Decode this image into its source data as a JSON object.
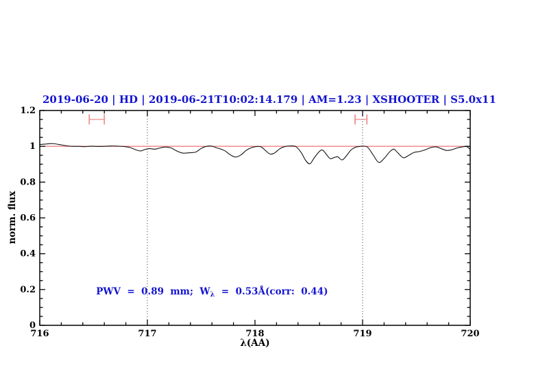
{
  "figure": {
    "background": "#ffffff",
    "title_color": "#1414d2"
  },
  "chart_data": {
    "type": "line",
    "title": "2019-06-20 | HD | 2019-06-21T10:02:14.179 | AM=1.23 | XSHOOTER | S5.0x11",
    "title_segments": [
      "2019-06-20",
      "HD",
      "2019-06-21T10:02:14.179",
      "AM=1.23",
      "XSHOOTER",
      "S5.0x11"
    ],
    "xlabel": "λ(AA)",
    "ylabel": "norm. flux",
    "xlim": [
      716,
      720
    ],
    "ylim": [
      0,
      1.2
    ],
    "x_ticks": [
      {
        "v": 716,
        "label": "716"
      },
      {
        "v": 717,
        "label": "717"
      },
      {
        "v": 718,
        "label": "718"
      },
      {
        "v": 719,
        "label": "719"
      },
      {
        "v": 720,
        "label": "720"
      }
    ],
    "y_ticks": [
      {
        "v": 0,
        "label": "0"
      },
      {
        "v": 0.2,
        "label": "0.2"
      },
      {
        "v": 0.4,
        "label": "0.4"
      },
      {
        "v": 0.6,
        "label": "0.6"
      },
      {
        "v": 0.8,
        "label": "0.8"
      },
      {
        "v": 1,
        "label": "1"
      },
      {
        "v": 1.2,
        "label": "1.2"
      }
    ],
    "x_minor_step": 0.2,
    "y_minor_step": 0.05,
    "grid": false,
    "dotted_vlines": [
      717,
      719
    ],
    "dotted_vline_color": "#333333",
    "continuum_line": {
      "flux": 1.0,
      "color": "#f08080"
    },
    "marker_color": "#f09090",
    "telluric_markers": [
      {
        "x_min": 716.46,
        "x_max": 716.6,
        "flux": 1.15,
        "cap_half_height": 0.028
      },
      {
        "x_min": 718.93,
        "x_max": 719.04,
        "flux": 1.15,
        "cap_half_height": 0.028
      }
    ],
    "annotation": {
      "text_pre": "PWV  =  0.89  mm;  W",
      "subscript": "λ",
      "text_post": "  =  0.53Å(corr:  0.44)",
      "x": 716.53,
      "flux": 0.2,
      "color": "#1414d2"
    },
    "series": [
      {
        "name": "observed spectrum",
        "color": "#141414",
        "points": [
          [
            716.0,
            1.01
          ],
          [
            716.06,
            1.013
          ],
          [
            716.12,
            1.015
          ],
          [
            716.18,
            1.01
          ],
          [
            716.24,
            1.004
          ],
          [
            716.3,
            1.0
          ],
          [
            716.36,
            1.0
          ],
          [
            716.42,
            0.998
          ],
          [
            716.48,
            1.001
          ],
          [
            716.54,
            0.999
          ],
          [
            716.6,
            1.0
          ],
          [
            716.66,
            1.002
          ],
          [
            716.72,
            1.001
          ],
          [
            716.78,
            0.999
          ],
          [
            716.84,
            0.993
          ],
          [
            716.9,
            0.979
          ],
          [
            716.94,
            0.974
          ],
          [
            716.98,
            0.983
          ],
          [
            717.02,
            0.987
          ],
          [
            717.07,
            0.984
          ],
          [
            717.12,
            0.991
          ],
          [
            717.17,
            0.996
          ],
          [
            717.22,
            0.991
          ],
          [
            717.27,
            0.975
          ],
          [
            717.33,
            0.962
          ],
          [
            717.39,
            0.964
          ],
          [
            717.45,
            0.968
          ],
          [
            717.5,
            0.988
          ],
          [
            717.55,
            1.0
          ],
          [
            717.6,
            1.001
          ],
          [
            717.64,
            0.992
          ],
          [
            717.68,
            0.985
          ],
          [
            717.72,
            0.975
          ],
          [
            717.77,
            0.953
          ],
          [
            717.82,
            0.94
          ],
          [
            717.87,
            0.952
          ],
          [
            717.92,
            0.978
          ],
          [
            717.97,
            0.993
          ],
          [
            718.02,
            0.999
          ],
          [
            718.06,
            0.996
          ],
          [
            718.1,
            0.975
          ],
          [
            718.14,
            0.957
          ],
          [
            718.18,
            0.962
          ],
          [
            718.23,
            0.986
          ],
          [
            718.28,
            0.999
          ],
          [
            718.33,
            1.002
          ],
          [
            718.38,
            0.998
          ],
          [
            718.43,
            0.965
          ],
          [
            718.47,
            0.922
          ],
          [
            718.51,
            0.902
          ],
          [
            718.55,
            0.935
          ],
          [
            718.6,
            0.972
          ],
          [
            718.63,
            0.978
          ],
          [
            718.67,
            0.95
          ],
          [
            718.7,
            0.931
          ],
          [
            718.74,
            0.938
          ],
          [
            718.77,
            0.941
          ],
          [
            718.81,
            0.924
          ],
          [
            718.85,
            0.947
          ],
          [
            718.89,
            0.978
          ],
          [
            718.93,
            0.994
          ],
          [
            718.97,
            0.999
          ],
          [
            719.01,
            1.001
          ],
          [
            719.05,
            0.993
          ],
          [
            719.1,
            0.95
          ],
          [
            719.15,
            0.91
          ],
          [
            719.2,
            0.932
          ],
          [
            719.25,
            0.968
          ],
          [
            719.29,
            0.984
          ],
          [
            719.33,
            0.962
          ],
          [
            719.38,
            0.936
          ],
          [
            719.43,
            0.95
          ],
          [
            719.48,
            0.966
          ],
          [
            719.53,
            0.971
          ],
          [
            719.58,
            0.98
          ],
          [
            719.63,
            0.992
          ],
          [
            719.68,
            0.997
          ],
          [
            719.73,
            0.987
          ],
          [
            719.78,
            0.977
          ],
          [
            719.83,
            0.981
          ],
          [
            719.88,
            0.991
          ],
          [
            719.93,
            0.997
          ],
          [
            719.97,
            0.998
          ],
          [
            720.0,
            0.982
          ]
        ]
      }
    ]
  }
}
